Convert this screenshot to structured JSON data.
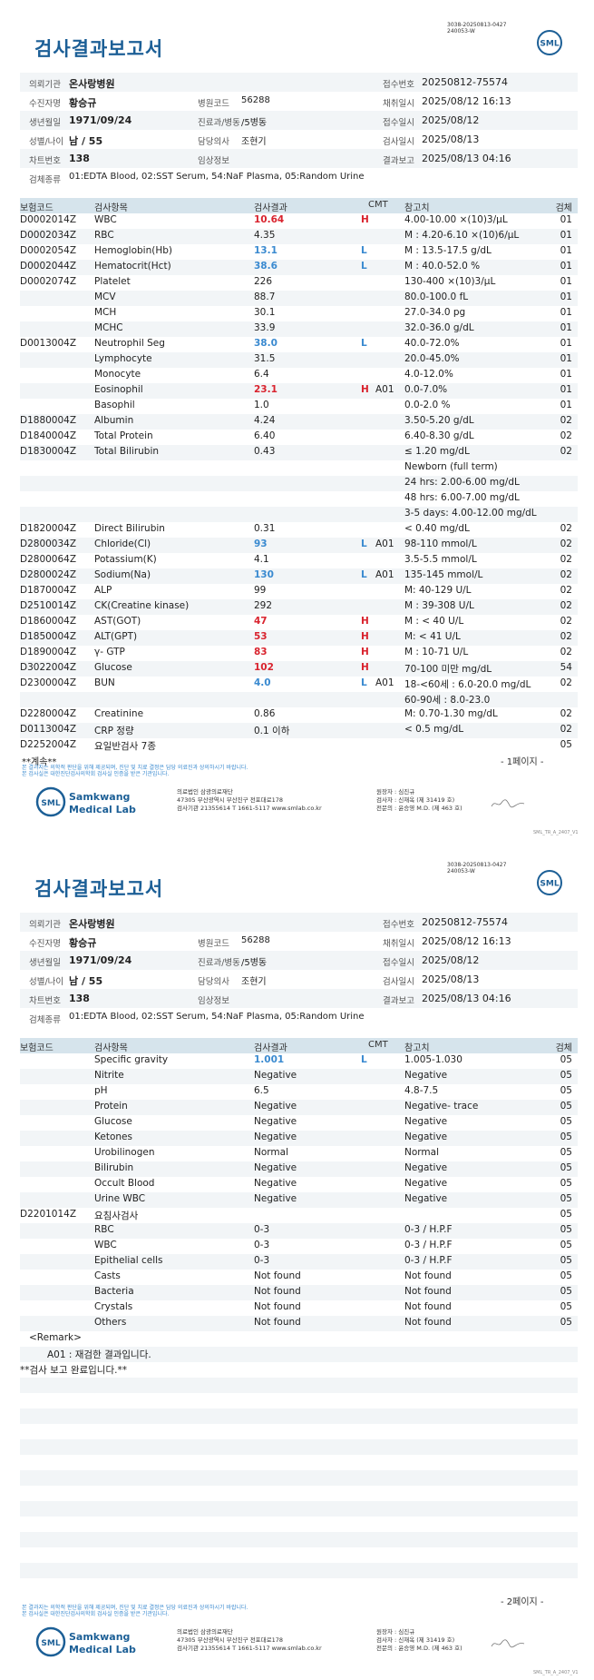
{
  "doc_title": "검사결과보고서",
  "doc_no": [
    "3038-20250813-0427",
    "240053-W"
  ],
  "logo_text": "SML",
  "info": {
    "r1": {
      "l1": "의뢰기관",
      "v1": "온사랑병원",
      "l4": "접수번호",
      "v4": "20250812-75574"
    },
    "r2": {
      "l1": "수진자명",
      "v1": "황승규",
      "l2": "병원코드",
      "v2": "56288",
      "l4": "채취일시",
      "v4": "2025/08/12 16:13"
    },
    "r3": {
      "l1": "생년월일",
      "v1": "1971/09/24",
      "l2": "진료과/병동",
      "v2": "/5병동",
      "l4": "접수일시",
      "v4": "2025/08/12"
    },
    "r4": {
      "l1": "성별/나이",
      "v1": "남 / 55",
      "l2": "담당의사",
      "v2": "조현기",
      "l4": "검사일시",
      "v4": "2025/08/13"
    },
    "r5": {
      "l1": "차트번호",
      "v1": "138",
      "l2": "임상정보",
      "v2": "",
      "l4": "결과보고",
      "v4": "2025/08/13 04:16"
    },
    "r6": {
      "l1": "검체종류",
      "v1": "01:EDTA Blood, 02:SST Serum, 54:NaF Plasma, 05:Random Urine"
    }
  },
  "table_header": {
    "code": "보험코드",
    "item": "검사항목",
    "result": "검사결과",
    "cmt": "CMT",
    "ref": "참고치",
    "specimen": "검체"
  },
  "page1_rows": [
    {
      "code": "D0002014Z",
      "item": "WBC",
      "result": "10.64",
      "rc": "hi",
      "flag": "H",
      "cmt": "",
      "ref": "4.00-10.00 ×(10)3/µL",
      "sp": "01"
    },
    {
      "code": "D0002034Z",
      "item": "RBC",
      "result": "4.35",
      "rc": "",
      "flag": "",
      "cmt": "",
      "ref": "M : 4.20-6.10 ×(10)6/µL",
      "sp": "01"
    },
    {
      "code": "D0002054Z",
      "item": "Hemoglobin(Hb)",
      "result": "13.1",
      "rc": "lo",
      "flag": "L",
      "cmt": "",
      "ref": "M : 13.5-17.5 g/dL",
      "sp": "01"
    },
    {
      "code": "D0002044Z",
      "item": "Hematocrit(Hct)",
      "result": "38.6",
      "rc": "lo",
      "flag": "L",
      "cmt": "",
      "ref": "M : 40.0-52.0 %",
      "sp": "01"
    },
    {
      "code": "D0002074Z",
      "item": "Platelet",
      "result": "226",
      "rc": "",
      "flag": "",
      "cmt": "",
      "ref": "130-400 ×(10)3/µL",
      "sp": "01"
    },
    {
      "code": "",
      "item": "MCV",
      "result": "88.7",
      "rc": "",
      "flag": "",
      "cmt": "",
      "ref": "80.0-100.0 fL",
      "sp": "01"
    },
    {
      "code": "",
      "item": "MCH",
      "result": "30.1",
      "rc": "",
      "flag": "",
      "cmt": "",
      "ref": "27.0-34.0 pg",
      "sp": "01"
    },
    {
      "code": "",
      "item": "MCHC",
      "result": "33.9",
      "rc": "",
      "flag": "",
      "cmt": "",
      "ref": "32.0-36.0 g/dL",
      "sp": "01"
    },
    {
      "code": "D0013004Z",
      "item": "Neutrophil Seg",
      "result": "38.0",
      "rc": "lo",
      "flag": "L",
      "cmt": "",
      "ref": "40.0-72.0%",
      "sp": "01"
    },
    {
      "code": "",
      "item": "Lymphocyte",
      "result": "31.5",
      "rc": "",
      "flag": "",
      "cmt": "",
      "ref": "20.0-45.0%",
      "sp": "01"
    },
    {
      "code": "",
      "item": "Monocyte",
      "result": "6.4",
      "rc": "",
      "flag": "",
      "cmt": "",
      "ref": "4.0-12.0%",
      "sp": "01"
    },
    {
      "code": "",
      "item": "Eosinophil",
      "result": "23.1",
      "rc": "hi",
      "flag": "H",
      "cmt": "A01",
      "ref": "0.0-7.0%",
      "sp": "01"
    },
    {
      "code": "",
      "item": "Basophil",
      "result": "1.0",
      "rc": "",
      "flag": "",
      "cmt": "",
      "ref": "0.0-2.0 %",
      "sp": "01"
    },
    {
      "code": "D1880004Z",
      "item": "Albumin",
      "result": "4.24",
      "rc": "",
      "flag": "",
      "cmt": "",
      "ref": "3.50-5.20 g/dL",
      "sp": "02"
    },
    {
      "code": "D1840004Z",
      "item": "Total Protein",
      "result": "6.40",
      "rc": "",
      "flag": "",
      "cmt": "",
      "ref": "6.40-8.30 g/dL",
      "sp": "02"
    },
    {
      "code": "D1830004Z",
      "item": "Total Bilirubin",
      "result": "0.43",
      "rc": "",
      "flag": "",
      "cmt": "",
      "ref": "≤ 1.20 mg/dL",
      "sp": "02"
    },
    {
      "code": "",
      "item": "",
      "result": "",
      "rc": "",
      "flag": "",
      "cmt": "",
      "ref": "Newborn (full term)",
      "sp": ""
    },
    {
      "code": "",
      "item": "",
      "result": "",
      "rc": "",
      "flag": "",
      "cmt": "",
      "ref": "24 hrs: 2.00-6.00 mg/dL",
      "sp": ""
    },
    {
      "code": "",
      "item": "",
      "result": "",
      "rc": "",
      "flag": "",
      "cmt": "",
      "ref": "48 hrs: 6.00-7.00 mg/dL",
      "sp": ""
    },
    {
      "code": "",
      "item": "",
      "result": "",
      "rc": "",
      "flag": "",
      "cmt": "",
      "ref": "3-5 days: 4.00-12.00 mg/dL",
      "sp": ""
    },
    {
      "code": "D1820004Z",
      "item": "Direct Bilirubin",
      "result": "0.31",
      "rc": "",
      "flag": "",
      "cmt": "",
      "ref": "< 0.40 mg/dL",
      "sp": "02"
    },
    {
      "code": "D2800034Z",
      "item": "Chloride(Cl)",
      "result": "93",
      "rc": "lo",
      "flag": "L",
      "cmt": "A01",
      "ref": "98-110 mmol/L",
      "sp": "02"
    },
    {
      "code": "D2800064Z",
      "item": "Potassium(K)",
      "result": "4.1",
      "rc": "",
      "flag": "",
      "cmt": "",
      "ref": "3.5-5.5 mmol/L",
      "sp": "02"
    },
    {
      "code": "D2800024Z",
      "item": "Sodium(Na)",
      "result": "130",
      "rc": "lo",
      "flag": "L",
      "cmt": "A01",
      "ref": "135-145 mmol/L",
      "sp": "02"
    },
    {
      "code": "D1870004Z",
      "item": "ALP",
      "result": "99",
      "rc": "",
      "flag": "",
      "cmt": "",
      "ref": "M: 40-129 U/L",
      "sp": "02"
    },
    {
      "code": "D2510014Z",
      "item": "CK(Creatine kinase)",
      "result": "292",
      "rc": "",
      "flag": "",
      "cmt": "",
      "ref": "M : 39-308 U/L",
      "sp": "02"
    },
    {
      "code": "D1860004Z",
      "item": "AST(GOT)",
      "result": "47",
      "rc": "hi",
      "flag": "H",
      "cmt": "",
      "ref": "M : < 40 U/L",
      "sp": "02"
    },
    {
      "code": "D1850004Z",
      "item": "ALT(GPT)",
      "result": "53",
      "rc": "hi",
      "flag": "H",
      "cmt": "",
      "ref": "M: < 41 U/L",
      "sp": "02"
    },
    {
      "code": "D1890004Z",
      "item": "γ- GTP",
      "result": "83",
      "rc": "hi",
      "flag": "H",
      "cmt": "",
      "ref": "M : 10-71 U/L",
      "sp": "02"
    },
    {
      "code": "D3022004Z",
      "item": "Glucose",
      "result": "102",
      "rc": "hi",
      "flag": "H",
      "cmt": "",
      "ref": "70-100 미만 mg/dL",
      "sp": "54"
    },
    {
      "code": "D2300004Z",
      "item": "BUN",
      "result": "4.0",
      "rc": "lo",
      "flag": "L",
      "cmt": "A01",
      "ref": "18-<60세 : 6.0-20.0 mg/dL",
      "sp": "02"
    },
    {
      "code": "",
      "item": "",
      "result": "",
      "rc": "",
      "flag": "",
      "cmt": "",
      "ref": "60-90세 : 8.0-23.0",
      "sp": ""
    },
    {
      "code": "D2280004Z",
      "item": "Creatinine",
      "result": "0.86",
      "rc": "",
      "flag": "",
      "cmt": "",
      "ref": "M: 0.70-1.30 mg/dL",
      "sp": "02"
    },
    {
      "code": "D0113004Z",
      "item": "CRP 정량",
      "result": "0.1 이하",
      "rc": "",
      "flag": "",
      "cmt": "",
      "ref": "< 0.5 mg/dL",
      "sp": "02"
    },
    {
      "code": "D2252004Z",
      "item": "요일반검사 7종",
      "result": "",
      "rc": "",
      "flag": "",
      "cmt": "",
      "ref": "",
      "sp": "05"
    }
  ],
  "page1_continued": "**계속**",
  "page1_label": "- 1페이지 -",
  "page2_rows": [
    {
      "code": "",
      "item": "Specific gravity",
      "result": "1.001",
      "rc": "lo",
      "flag": "L",
      "cmt": "",
      "ref": "1.005-1.030",
      "sp": "05"
    },
    {
      "code": "",
      "item": "Nitrite",
      "result": "Negative",
      "rc": "",
      "flag": "",
      "cmt": "",
      "ref": "Negative",
      "sp": "05"
    },
    {
      "code": "",
      "item": "pH",
      "result": "6.5",
      "rc": "",
      "flag": "",
      "cmt": "",
      "ref": "4.8-7.5",
      "sp": "05"
    },
    {
      "code": "",
      "item": "Protein",
      "result": "Negative",
      "rc": "",
      "flag": "",
      "cmt": "",
      "ref": "Negative- trace",
      "sp": "05"
    },
    {
      "code": "",
      "item": "Glucose",
      "result": "Negative",
      "rc": "",
      "flag": "",
      "cmt": "",
      "ref": "Negative",
      "sp": "05"
    },
    {
      "code": "",
      "item": "Ketones",
      "result": "Negative",
      "rc": "",
      "flag": "",
      "cmt": "",
      "ref": "Negative",
      "sp": "05"
    },
    {
      "code": "",
      "item": "Urobilinogen",
      "result": "Normal",
      "rc": "",
      "flag": "",
      "cmt": "",
      "ref": "Normal",
      "sp": "05"
    },
    {
      "code": "",
      "item": "Bilirubin",
      "result": "Negative",
      "rc": "",
      "flag": "",
      "cmt": "",
      "ref": "Negative",
      "sp": "05"
    },
    {
      "code": "",
      "item": "Occult Blood",
      "result": "Negative",
      "rc": "",
      "flag": "",
      "cmt": "",
      "ref": "Negative",
      "sp": "05"
    },
    {
      "code": "",
      "item": "Urine WBC",
      "result": "Negative",
      "rc": "",
      "flag": "",
      "cmt": "",
      "ref": "Negative",
      "sp": "05"
    },
    {
      "code": "D2201014Z",
      "item": "요침사검사",
      "result": "",
      "rc": "",
      "flag": "",
      "cmt": "",
      "ref": "",
      "sp": "05"
    },
    {
      "code": "",
      "item": "RBC",
      "result": "0-3",
      "rc": "",
      "flag": "",
      "cmt": "",
      "ref": "0-3 / H.P.F",
      "sp": "05"
    },
    {
      "code": "",
      "item": "WBC",
      "result": "0-3",
      "rc": "",
      "flag": "",
      "cmt": "",
      "ref": "0-3 / H.P.F",
      "sp": "05"
    },
    {
      "code": "",
      "item": "Epithelial cells",
      "result": "0-3",
      "rc": "",
      "flag": "",
      "cmt": "",
      "ref": "0-3 / H.P.F",
      "sp": "05"
    },
    {
      "code": "",
      "item": "Casts",
      "result": "Not found",
      "rc": "",
      "flag": "",
      "cmt": "",
      "ref": "Not found",
      "sp": "05"
    },
    {
      "code": "",
      "item": "Bacteria",
      "result": "Not found",
      "rc": "",
      "flag": "",
      "cmt": "",
      "ref": "Not found",
      "sp": "05"
    },
    {
      "code": "",
      "item": "Crystals",
      "result": "Not found",
      "rc": "",
      "flag": "",
      "cmt": "",
      "ref": "Not found",
      "sp": "05"
    },
    {
      "code": "",
      "item": "Others",
      "result": "Not found",
      "rc": "",
      "flag": "",
      "cmt": "",
      "ref": "Not found",
      "sp": "05"
    }
  ],
  "remark_title": "<Remark>",
  "remark_text": "A01 : 재검한 결과입니다.",
  "report_done": "**검사 보고 완료입니다.**",
  "page2_label": "- 2페이지 -",
  "footer": {
    "note": [
      "본 결과지는 의학적 판단을 위해 제공되며, 진단 및 치료 결정은 담당 의료진과 상의하시기 바랍니다.",
      "본 검사실은 대한진단검사의학회 검사실 인증을 받은 기관입니다."
    ],
    "brand1": "Samkwang",
    "brand2": "Medical Lab",
    "org": [
      "의료법인 삼광의료재단",
      "47305 부산광역시 부산진구 전포대로178",
      "검사기관 21355614 T 1661-5117 www.smlab.co.kr"
    ],
    "staff": [
      "원장자 : 심진규",
      "검사자 : 신재옥 (제 31419 호)",
      "전문의 : 윤승영 M.D. (제 463 호)"
    ],
    "form_code": "SML_TR_A_2407_V1"
  },
  "colors": {
    "accent": "#1c5f96",
    "high": "#d9232e",
    "low": "#3a8ad0",
    "header_bg": "#d6e4ec",
    "stripe": "#f2f5f7"
  }
}
